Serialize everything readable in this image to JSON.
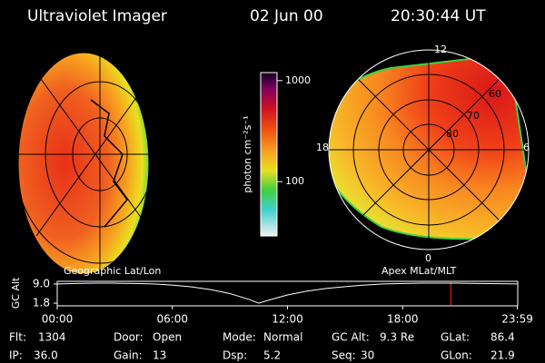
{
  "header": {
    "instrument": "Ultraviolet Imager",
    "date": "02 Jun 00",
    "time": "20:30:44 UT"
  },
  "images": {
    "left": {
      "label": "Geographic Lat/Lon"
    },
    "right": {
      "label": "Apex MLat/MLT",
      "mlt_labels": [
        "12",
        "18",
        "6",
        "0"
      ],
      "mlat_labels": [
        "60",
        "70",
        "80"
      ]
    }
  },
  "colorbar": {
    "label": "photon cm⁻²s⁻¹",
    "log": true,
    "lim": [
      29,
      1200
    ],
    "ticks": [
      100,
      1000
    ]
  },
  "altitude_plot": {
    "type": "line",
    "ylabel": "GC Alt",
    "x": [
      0,
      1,
      2,
      3,
      4,
      5,
      6,
      7,
      8,
      9,
      10,
      10.5,
      11,
      12,
      13,
      14,
      15,
      16,
      17,
      18,
      19,
      20,
      21,
      22,
      23,
      24
    ],
    "values": [
      9.0,
      9.2,
      9.3,
      9.3,
      9.2,
      9.0,
      8.6,
      7.9,
      6.9,
      5.4,
      3.2,
      1.8,
      2.9,
      4.9,
      6.3,
      7.3,
      8.0,
      8.6,
      9.0,
      9.2,
      9.3,
      9.3,
      9.3,
      9.2,
      9.1,
      9.0
    ],
    "color": "#ffffff",
    "xlim": [
      0,
      24
    ],
    "xticks": [
      {
        "value": 0,
        "label": "00:00"
      },
      {
        "value": 6,
        "label": "06:00"
      },
      {
        "value": 12,
        "label": "12:00"
      },
      {
        "value": 18,
        "label": "18:00"
      },
      {
        "value": 23.98,
        "label": "23:59"
      }
    ],
    "ylim": [
      0.8,
      10.0
    ],
    "yticks": [
      {
        "value": 9,
        "label": "9.0"
      },
      1.8
    ],
    "marker_x": 20.51,
    "marker_color": "#ff2020"
  },
  "info": [
    [
      {
        "label": "Flt:",
        "value": "1304"
      },
      {
        "label": "Door:",
        "value": "Open"
      },
      {
        "label": "Mode:",
        "value": "Normal"
      },
      {
        "label": "GC Alt:",
        "value": "9.3 Re"
      },
      {
        "label": "GLat:",
        "value": "86.4"
      }
    ],
    [
      {
        "label": "IP:",
        "value": "36.0"
      },
      {
        "label": "Gain:",
        "value": "13"
      },
      {
        "label": "Dsp:",
        "value": "5.2"
      },
      {
        "label": "Seq:",
        "value": "30"
      },
      {
        "label": "GLon:",
        "value": "21.9"
      }
    ]
  ]
}
